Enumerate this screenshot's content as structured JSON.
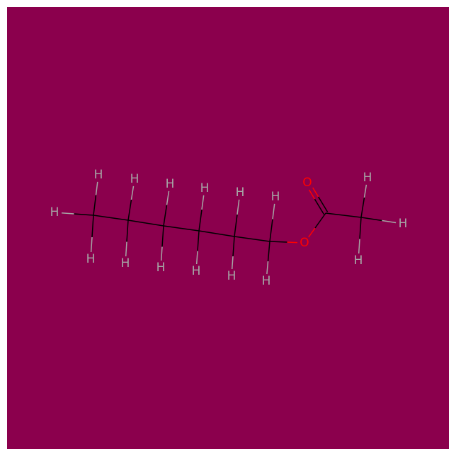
{
  "molecule": {
    "background": "#8b004d",
    "colors": {
      "bond": "#000000",
      "hydrogen": "#a6a6a6",
      "oxygen": "#ff0000"
    },
    "atoms": [
      {
        "id": "C1",
        "element": "C",
        "label": ""
      },
      {
        "id": "C2",
        "element": "C",
        "label": ""
      },
      {
        "id": "C3",
        "element": "C",
        "label": ""
      },
      {
        "id": "C4",
        "element": "C",
        "label": ""
      },
      {
        "id": "C5",
        "element": "C",
        "label": ""
      },
      {
        "id": "C6",
        "element": "C",
        "label": ""
      },
      {
        "id": "O1",
        "element": "O",
        "label": "O"
      },
      {
        "id": "C7",
        "element": "C",
        "label": ""
      },
      {
        "id": "O2",
        "element": "O",
        "label": "O"
      },
      {
        "id": "C8",
        "element": "C",
        "label": ""
      },
      {
        "id": "H1",
        "element": "H",
        "label": "H"
      },
      {
        "id": "H2",
        "element": "H",
        "label": "H"
      },
      {
        "id": "H3",
        "element": "H",
        "label": "H"
      },
      {
        "id": "H4",
        "element": "H",
        "label": "H"
      },
      {
        "id": "H5",
        "element": "H",
        "label": "H"
      },
      {
        "id": "H6",
        "element": "H",
        "label": "H"
      },
      {
        "id": "H7",
        "element": "H",
        "label": "H"
      },
      {
        "id": "H8",
        "element": "H",
        "label": "H"
      },
      {
        "id": "H9",
        "element": "H",
        "label": "H"
      },
      {
        "id": "H10",
        "element": "H",
        "label": "H"
      },
      {
        "id": "H11",
        "element": "H",
        "label": "H"
      },
      {
        "id": "H12",
        "element": "H",
        "label": "H"
      },
      {
        "id": "H13",
        "element": "H",
        "label": "H"
      },
      {
        "id": "H14",
        "element": "H",
        "label": "H"
      },
      {
        "id": "H15",
        "element": "H",
        "label": "H"
      },
      {
        "id": "H16",
        "element": "H",
        "label": "H"
      }
    ],
    "bonds": [
      {
        "a": "C1",
        "b": "C2",
        "order": 1
      },
      {
        "a": "C2",
        "b": "C3",
        "order": 1
      },
      {
        "a": "C3",
        "b": "C4",
        "order": 1
      },
      {
        "a": "C4",
        "b": "C5",
        "order": 1
      },
      {
        "a": "C5",
        "b": "C6",
        "order": 1
      },
      {
        "a": "C6",
        "b": "O1",
        "order": 1
      },
      {
        "a": "O1",
        "b": "C7",
        "order": 1
      },
      {
        "a": "C7",
        "b": "O2",
        "order": 2
      },
      {
        "a": "C7",
        "b": "C8",
        "order": 1
      },
      {
        "a": "C1",
        "b": "H1",
        "order": 1
      },
      {
        "a": "C1",
        "b": "H2",
        "order": 1
      },
      {
        "a": "C1",
        "b": "H3",
        "order": 1
      },
      {
        "a": "C2",
        "b": "H4",
        "order": 1
      },
      {
        "a": "C2",
        "b": "H5",
        "order": 1
      },
      {
        "a": "C3",
        "b": "H6",
        "order": 1
      },
      {
        "a": "C3",
        "b": "H7",
        "order": 1
      },
      {
        "a": "C4",
        "b": "H8",
        "order": 1
      },
      {
        "a": "C4",
        "b": "H9",
        "order": 1
      },
      {
        "a": "C5",
        "b": "H10",
        "order": 1
      },
      {
        "a": "C5",
        "b": "H11",
        "order": 1
      },
      {
        "a": "C6",
        "b": "H12",
        "order": 1
      },
      {
        "a": "C6",
        "b": "H13",
        "order": 1
      },
      {
        "a": "C8",
        "b": "H14",
        "order": 1
      },
      {
        "a": "C8",
        "b": "H15",
        "order": 1
      },
      {
        "a": "C8",
        "b": "H16",
        "order": 1
      }
    ]
  }
}
